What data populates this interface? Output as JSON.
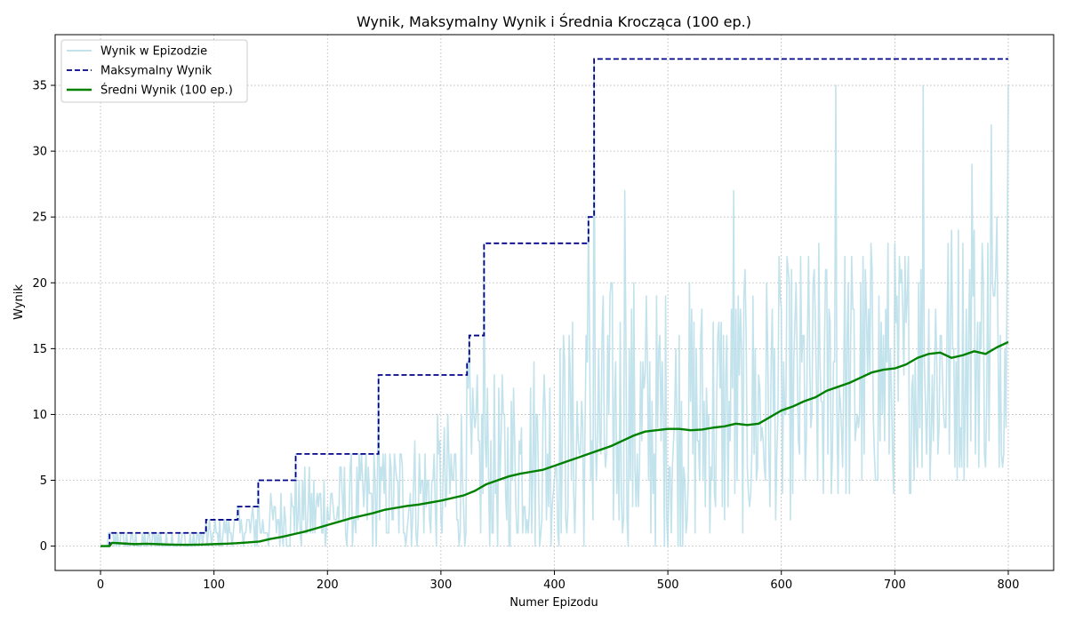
{
  "chart_data": {
    "type": "line",
    "title": "Wynik, Maksymalny Wynik i Średnia Krocząca (100 ep.)",
    "xlabel": "Numer Epizodu",
    "ylabel": "Wynik",
    "xlim": [
      -40,
      840
    ],
    "ylim": [
      -1.85,
      38.85
    ],
    "xticks": [
      0,
      100,
      200,
      300,
      400,
      500,
      600,
      700,
      800
    ],
    "yticks": [
      0,
      5,
      10,
      15,
      20,
      25,
      30,
      35
    ],
    "grid": true,
    "legend_position": "upper-left",
    "series": [
      {
        "name": "Wynik w Epizodzie",
        "color": "#add8e6",
        "style": "solid-thin",
        "generated_envelope": [
          [
            0,
            0,
            0
          ],
          [
            8,
            0,
            1
          ],
          [
            40,
            0,
            1
          ],
          [
            90,
            0,
            1
          ],
          [
            100,
            0,
            2
          ],
          [
            130,
            0,
            3
          ],
          [
            150,
            0,
            4
          ],
          [
            180,
            0,
            6
          ],
          [
            220,
            0,
            7
          ],
          [
            250,
            0,
            8
          ],
          [
            280,
            0,
            9
          ],
          [
            300,
            0,
            10
          ],
          [
            330,
            0,
            13
          ],
          [
            360,
            0,
            14
          ],
          [
            400,
            0,
            17
          ],
          [
            450,
            0,
            21
          ],
          [
            500,
            0,
            20
          ],
          [
            550,
            1,
            21
          ],
          [
            600,
            2,
            22
          ],
          [
            650,
            3,
            24
          ],
          [
            700,
            4,
            24
          ],
          [
            750,
            5,
            26
          ],
          [
            800,
            6,
            28
          ]
        ],
        "highlights": [
          [
            8,
            1
          ],
          [
            93,
            2
          ],
          [
            121,
            3
          ],
          [
            139,
            5
          ],
          [
            172,
            7
          ],
          [
            245,
            13
          ],
          [
            323,
            14
          ],
          [
            325,
            16
          ],
          [
            338,
            23
          ],
          [
            430,
            25
          ],
          [
            435,
            37
          ],
          [
            462,
            27
          ],
          [
            558,
            27
          ],
          [
            648,
            35
          ],
          [
            725,
            35
          ],
          [
            800,
            35
          ],
          [
            785,
            32
          ],
          [
            768,
            29
          ]
        ]
      },
      {
        "name": "Maksymalny Wynik",
        "color": "#00008b",
        "style": "dashed",
        "steps": [
          [
            0,
            0
          ],
          [
            8,
            1
          ],
          [
            93,
            2
          ],
          [
            121,
            3
          ],
          [
            139,
            5
          ],
          [
            172,
            7
          ],
          [
            245,
            13
          ],
          [
            323,
            14
          ],
          [
            325,
            16
          ],
          [
            338,
            23
          ],
          [
            430,
            25
          ],
          [
            435,
            37
          ],
          [
            800,
            37
          ]
        ]
      },
      {
        "name": "Średni Wynik (100 ep.)",
        "color": "#008000",
        "style": "solid-thick",
        "points": [
          [
            0,
            0
          ],
          [
            8,
            0
          ],
          [
            10,
            0.25
          ],
          [
            20,
            0.2
          ],
          [
            30,
            0.15
          ],
          [
            40,
            0.18
          ],
          [
            50,
            0.15
          ],
          [
            60,
            0.12
          ],
          [
            70,
            0.1
          ],
          [
            80,
            0.1
          ],
          [
            90,
            0.12
          ],
          [
            100,
            0.15
          ],
          [
            110,
            0.18
          ],
          [
            120,
            0.22
          ],
          [
            130,
            0.28
          ],
          [
            140,
            0.35
          ],
          [
            150,
            0.55
          ],
          [
            160,
            0.7
          ],
          [
            170,
            0.9
          ],
          [
            180,
            1.1
          ],
          [
            190,
            1.35
          ],
          [
            200,
            1.6
          ],
          [
            210,
            1.85
          ],
          [
            220,
            2.1
          ],
          [
            230,
            2.3
          ],
          [
            240,
            2.5
          ],
          [
            250,
            2.75
          ],
          [
            260,
            2.9
          ],
          [
            270,
            3.05
          ],
          [
            280,
            3.15
          ],
          [
            290,
            3.3
          ],
          [
            300,
            3.45
          ],
          [
            310,
            3.65
          ],
          [
            320,
            3.85
          ],
          [
            330,
            4.2
          ],
          [
            340,
            4.7
          ],
          [
            350,
            5.0
          ],
          [
            360,
            5.3
          ],
          [
            370,
            5.5
          ],
          [
            380,
            5.65
          ],
          [
            390,
            5.8
          ],
          [
            400,
            6.1
          ],
          [
            410,
            6.4
          ],
          [
            420,
            6.7
          ],
          [
            430,
            7.0
          ],
          [
            440,
            7.3
          ],
          [
            450,
            7.6
          ],
          [
            460,
            8.0
          ],
          [
            470,
            8.4
          ],
          [
            480,
            8.7
          ],
          [
            490,
            8.8
          ],
          [
            500,
            8.9
          ],
          [
            510,
            8.9
          ],
          [
            520,
            8.8
          ],
          [
            530,
            8.85
          ],
          [
            540,
            9.0
          ],
          [
            550,
            9.1
          ],
          [
            560,
            9.3
          ],
          [
            570,
            9.2
          ],
          [
            580,
            9.3
          ],
          [
            590,
            9.8
          ],
          [
            600,
            10.3
          ],
          [
            610,
            10.6
          ],
          [
            620,
            11.0
          ],
          [
            630,
            11.3
          ],
          [
            640,
            11.8
          ],
          [
            650,
            12.1
          ],
          [
            660,
            12.4
          ],
          [
            670,
            12.8
          ],
          [
            680,
            13.2
          ],
          [
            690,
            13.4
          ],
          [
            700,
            13.5
          ],
          [
            710,
            13.8
          ],
          [
            720,
            14.3
          ],
          [
            730,
            14.6
          ],
          [
            740,
            14.7
          ],
          [
            750,
            14.3
          ],
          [
            760,
            14.5
          ],
          [
            770,
            14.8
          ],
          [
            780,
            14.6
          ],
          [
            790,
            15.1
          ],
          [
            800,
            15.5
          ]
        ]
      }
    ]
  }
}
